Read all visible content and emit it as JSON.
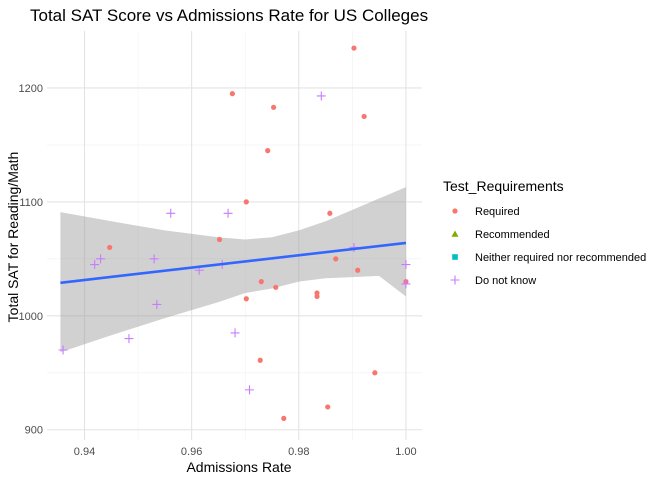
{
  "chart_data": {
    "type": "scatter",
    "title": "Total SAT Score vs Admissions Rate for US Colleges",
    "xlabel": "Admissions Rate",
    "ylabel": "Total SAT for Reading/Math",
    "xlim": [
      0.933,
      1.003
    ],
    "ylim": [
      891,
      1250
    ],
    "x_ticks": [
      0.94,
      0.96,
      0.98,
      1.0
    ],
    "x_tick_labels": [
      "0.94",
      "0.96",
      "0.98",
      "1.00"
    ],
    "y_ticks": [
      900,
      1000,
      1100,
      1200
    ],
    "y_tick_labels": [
      "900",
      "1000",
      "1100",
      "1200"
    ],
    "grid": true,
    "legend": {
      "title": "Test_Requirements",
      "placement": "right",
      "entries": [
        {
          "label": "Required",
          "shape": "circle",
          "color": "#F8766D"
        },
        {
          "label": "Recommended",
          "shape": "triangle",
          "color": "#7CAE00"
        },
        {
          "label": "Neither required nor recommended",
          "shape": "square",
          "color": "#00BFC4"
        },
        {
          "label": "Do not know",
          "shape": "plus",
          "color": "#C77CFF"
        }
      ]
    },
    "series": [
      {
        "name": "Required",
        "shape": "circle",
        "color": "#F8766D",
        "points": [
          [
            0.9903,
            1235
          ],
          [
            0.9676,
            1195
          ],
          [
            0.9753,
            1183
          ],
          [
            0.9922,
            1175
          ],
          [
            0.9742,
            1145
          ],
          [
            0.9702,
            1100
          ],
          [
            0.9858,
            1090
          ],
          [
            0.9447,
            1060
          ],
          [
            0.9652,
            1067
          ],
          [
            0.9869,
            1050
          ],
          [
            0.991,
            1040
          ],
          [
            0.973,
            1030
          ],
          [
            0.9757,
            1025
          ],
          [
            0.9834,
            1020
          ],
          [
            0.9834,
            1017
          ],
          [
            0.9702,
            1015
          ],
          [
            1.0,
            1030
          ],
          [
            0.9728,
            961
          ],
          [
            0.9942,
            950
          ],
          [
            0.9772,
            910
          ],
          [
            0.9854,
            920
          ]
        ]
      },
      {
        "name": "Do not know",
        "shape": "plus",
        "color": "#C77CFF",
        "points": [
          [
            0.9842,
            1193
          ],
          [
            0.9561,
            1090
          ],
          [
            0.9668,
            1090
          ],
          [
            0.9903,
            1060
          ],
          [
            0.943,
            1050
          ],
          [
            0.9419,
            1045
          ],
          [
            0.953,
            1050
          ],
          [
            0.9614,
            1040
          ],
          [
            0.9657,
            1045
          ],
          [
            0.9535,
            1010
          ],
          [
            0.9483,
            980
          ],
          [
            0.9681,
            985
          ],
          [
            0.936,
            970
          ],
          [
            0.9708,
            935
          ],
          [
            1.0,
            1045
          ],
          [
            1.0,
            1028
          ]
        ]
      }
    ],
    "trend_line": {
      "color": "#3366FF",
      "x": [
        0.9355,
        1.0
      ],
      "y": [
        1029,
        1064
      ]
    },
    "confidence_band": {
      "color": "#999999",
      "x": [
        0.9355,
        0.945,
        0.955,
        0.965,
        0.97,
        0.975,
        0.98,
        0.985,
        0.99,
        0.995,
        1.0
      ],
      "upper": [
        1091,
        1083,
        1075,
        1069,
        1067,
        1069,
        1075,
        1083,
        1093,
        1103,
        1113
      ],
      "lower": [
        968,
        983,
        998,
        1012,
        1020,
        1024,
        1030,
        1033,
        1034,
        1035,
        1017
      ]
    }
  }
}
